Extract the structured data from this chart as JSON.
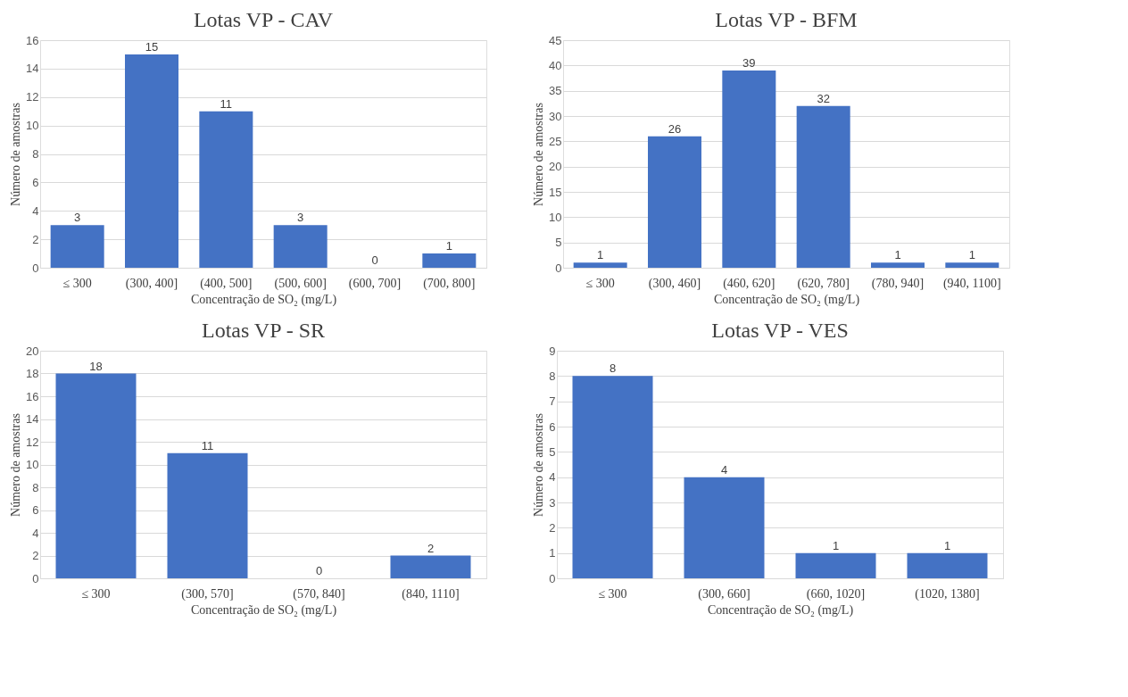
{
  "chart_data": [
    {
      "type": "bar",
      "title": "Lotas VP - CAV",
      "xlabel": "Concentração de SO₂ (mg/L)",
      "ylabel": "Número de amostras",
      "categories": [
        "≤ 300",
        "(300, 400]",
        "(400, 500]",
        "(500, 600]",
        "(600, 700]",
        "(700, 800]"
      ],
      "values": [
        3,
        15,
        11,
        3,
        0,
        1
      ],
      "color": "#4472c4",
      "ylim": [
        0,
        16
      ],
      "yticks": [
        0,
        2,
        4,
        6,
        8,
        10,
        12,
        14,
        16
      ],
      "grid": "y",
      "data_labels": true
    },
    {
      "type": "bar",
      "title": "Lotas VP - BFM",
      "xlabel": "Concentração de SO₂ (mg/L)",
      "ylabel": "Número de amostras",
      "categories": [
        "≤ 300",
        "(300, 460]",
        "(460, 620]",
        "(620, 780]",
        "(780, 940]",
        "(940, 1100]"
      ],
      "values": [
        1,
        26,
        39,
        32,
        1,
        1
      ],
      "color": "#4472c4",
      "ylim": [
        0,
        45
      ],
      "yticks": [
        0,
        5,
        10,
        15,
        20,
        25,
        30,
        35,
        40,
        45
      ],
      "grid": "y",
      "data_labels": true
    },
    {
      "type": "bar",
      "title": "Lotas VP - SR",
      "xlabel": "Concentração de SO₂ (mg/L)",
      "ylabel": "Número de amostras",
      "categories": [
        "≤ 300",
        "(300, 570]",
        "(570, 840]",
        "(840, 1110]"
      ],
      "values": [
        18,
        11,
        0,
        2
      ],
      "color": "#4472c4",
      "ylim": [
        0,
        20
      ],
      "yticks": [
        0,
        2,
        4,
        6,
        8,
        10,
        12,
        14,
        16,
        18,
        20
      ],
      "grid": "y",
      "data_labels": true
    },
    {
      "type": "bar",
      "title": "Lotas VP - VES",
      "xlabel": "Concentração de SO₂ (mg/L)",
      "ylabel": "Número de amostras",
      "categories": [
        "≤ 300",
        "(300, 660]",
        "(660, 1020]",
        "(1020, 1380]"
      ],
      "values": [
        8,
        4,
        1,
        1
      ],
      "color": "#4472c4",
      "ylim": [
        0,
        9
      ],
      "yticks": [
        0,
        1,
        2,
        3,
        4,
        5,
        6,
        7,
        8,
        9
      ],
      "grid": "y",
      "data_labels": true
    }
  ]
}
